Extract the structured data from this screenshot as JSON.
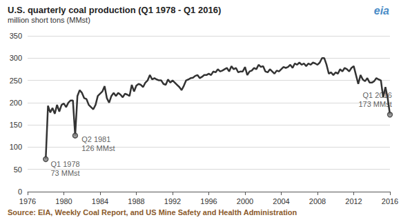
{
  "chart_data": {
    "type": "line",
    "title": "U.S. quarterly coal production (Q1 1978 - Q1 2016)",
    "subtitle": "million short tons (MMst)",
    "source": "Source: EIA, Weekly Coal Report, and US Mine Safety and Health Administration",
    "logo": "eia",
    "color": "#333333",
    "x": [
      1978,
      1978.25,
      1978.5,
      1978.75,
      1979,
      1979.25,
      1979.5,
      1979.75,
      1980,
      1980.25,
      1980.5,
      1980.75,
      1981,
      1981.25,
      1981.5,
      1981.75,
      1982,
      1982.25,
      1982.5,
      1982.75,
      1983,
      1983.25,
      1983.5,
      1983.75,
      1984,
      1984.25,
      1984.5,
      1984.75,
      1985,
      1985.25,
      1985.5,
      1985.75,
      1986,
      1986.25,
      1986.5,
      1986.75,
      1987,
      1987.25,
      1987.5,
      1987.75,
      1988,
      1988.25,
      1988.5,
      1988.75,
      1989,
      1989.25,
      1989.5,
      1989.75,
      1990,
      1990.25,
      1990.5,
      1990.75,
      1991,
      1991.25,
      1991.5,
      1991.75,
      1992,
      1992.25,
      1992.5,
      1992.75,
      1993,
      1993.25,
      1993.5,
      1993.75,
      1994,
      1994.25,
      1994.5,
      1994.75,
      1995,
      1995.25,
      1995.5,
      1995.75,
      1996,
      1996.25,
      1996.5,
      1996.75,
      1997,
      1997.25,
      1997.5,
      1997.75,
      1998,
      1998.25,
      1998.5,
      1998.75,
      1999,
      1999.25,
      1999.5,
      1999.75,
      2000,
      2000.25,
      2000.5,
      2000.75,
      2001,
      2001.25,
      2001.5,
      2001.75,
      2002,
      2002.25,
      2002.5,
      2002.75,
      2003,
      2003.25,
      2003.5,
      2003.75,
      2004,
      2004.25,
      2004.5,
      2004.75,
      2005,
      2005.25,
      2005.5,
      2005.75,
      2006,
      2006.25,
      2006.5,
      2006.75,
      2007,
      2007.25,
      2007.5,
      2007.75,
      2008,
      2008.25,
      2008.5,
      2008.75,
      2009,
      2009.25,
      2009.5,
      2009.75,
      2010,
      2010.25,
      2010.5,
      2010.75,
      2011,
      2011.25,
      2011.5,
      2011.75,
      2012,
      2012.25,
      2012.5,
      2012.75,
      2013,
      2013.25,
      2013.5,
      2013.75,
      2014,
      2014.25,
      2014.5,
      2014.75,
      2015,
      2015.25,
      2015.5,
      2015.75,
      2016
    ],
    "values": [
      73,
      193,
      178,
      188,
      175,
      195,
      180,
      195,
      198,
      190,
      200,
      205,
      205,
      126,
      215,
      228,
      222,
      210,
      208,
      195,
      190,
      185,
      195,
      215,
      220,
      225,
      237,
      210,
      200,
      215,
      222,
      215,
      222,
      218,
      212,
      220,
      218,
      215,
      240,
      225,
      238,
      242,
      240,
      235,
      245,
      250,
      262,
      252,
      255,
      252,
      250,
      250,
      242,
      240,
      252,
      245,
      250,
      245,
      240,
      235,
      228,
      238,
      250,
      252,
      255,
      256,
      260,
      262,
      255,
      258,
      262,
      262,
      265,
      262,
      270,
      268,
      275,
      270,
      272,
      275,
      278,
      270,
      282,
      275,
      278,
      268,
      270,
      270,
      280,
      262,
      270,
      272,
      278,
      275,
      285,
      280,
      282,
      270,
      268,
      275,
      270,
      265,
      272,
      270,
      275,
      280,
      278,
      280,
      285,
      278,
      288,
      285,
      290,
      285,
      288,
      282,
      288,
      285,
      290,
      288,
      285,
      290,
      300,
      300,
      285,
      265,
      268,
      262,
      268,
      265,
      275,
      270,
      278,
      275,
      270,
      278,
      282,
      262,
      242,
      262,
      252,
      248,
      255,
      245,
      245,
      248,
      255,
      252,
      250,
      212,
      235,
      210,
      173
    ],
    "xlim": [
      1976,
      2016
    ],
    "xticks": [
      1976,
      1980,
      1984,
      1988,
      1992,
      1996,
      2000,
      2004,
      2008,
      2012,
      2016
    ],
    "ylim": [
      0,
      350
    ],
    "yticks": [
      0,
      50,
      100,
      150,
      200,
      250,
      300,
      350
    ],
    "grid": true,
    "annotations": [
      {
        "text": "Q1 1978\n73 MMst",
        "x": 1978,
        "y": 73
      },
      {
        "text": "Q2 1981\n126 MMst",
        "x": 1981.25,
        "y": 126
      },
      {
        "text": "Q1 2016\n173 MMst",
        "x": 2016,
        "y": 173
      }
    ]
  }
}
